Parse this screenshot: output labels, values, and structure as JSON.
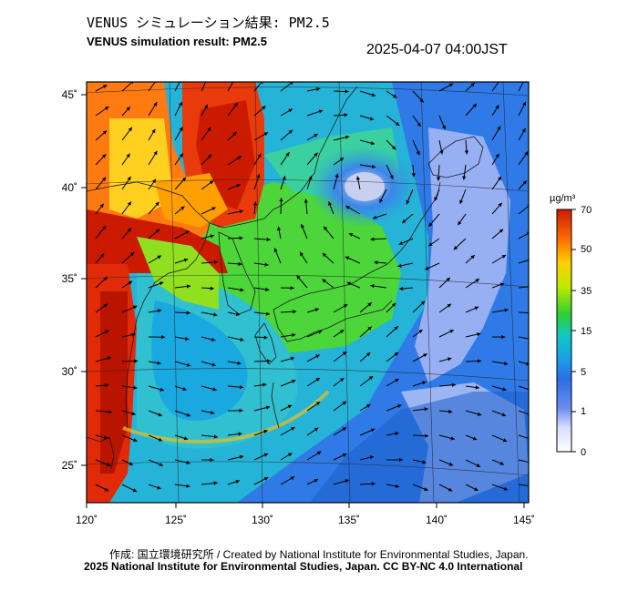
{
  "title_ja": "VENUS シミュレーション結果: PM2.5",
  "title_en": "VENUS simulation result: PM2.5",
  "timestamp": "2025-04-07 04:00JST",
  "lat_labels": [
    "45˚",
    "40˚",
    "35˚",
    "30˚",
    "25˚"
  ],
  "lon_labels": [
    "120˚",
    "125˚",
    "130˚",
    "135˚",
    "140˚",
    "145˚"
  ],
  "colorbar": {
    "unit": "µg/m³",
    "ticks": [
      "70",
      "50",
      "35",
      "15",
      "5",
      "1",
      "0"
    ],
    "colors": [
      "#cc1a00",
      "#ff6a00",
      "#ffd000",
      "#bfe800",
      "#30d030",
      "#10c8c0",
      "#1a9ee8",
      "#2c6ee6",
      "#6a8cf0",
      "#d8deff",
      "#ffffff"
    ]
  },
  "credit_line1": "作成: 国立環境研究所 / Created by National Institute for Environmental Studies, Japan.",
  "credit_line2": "2025 National Institute for Environmental Studies, Japan. CC BY-NC 4.0 International"
}
